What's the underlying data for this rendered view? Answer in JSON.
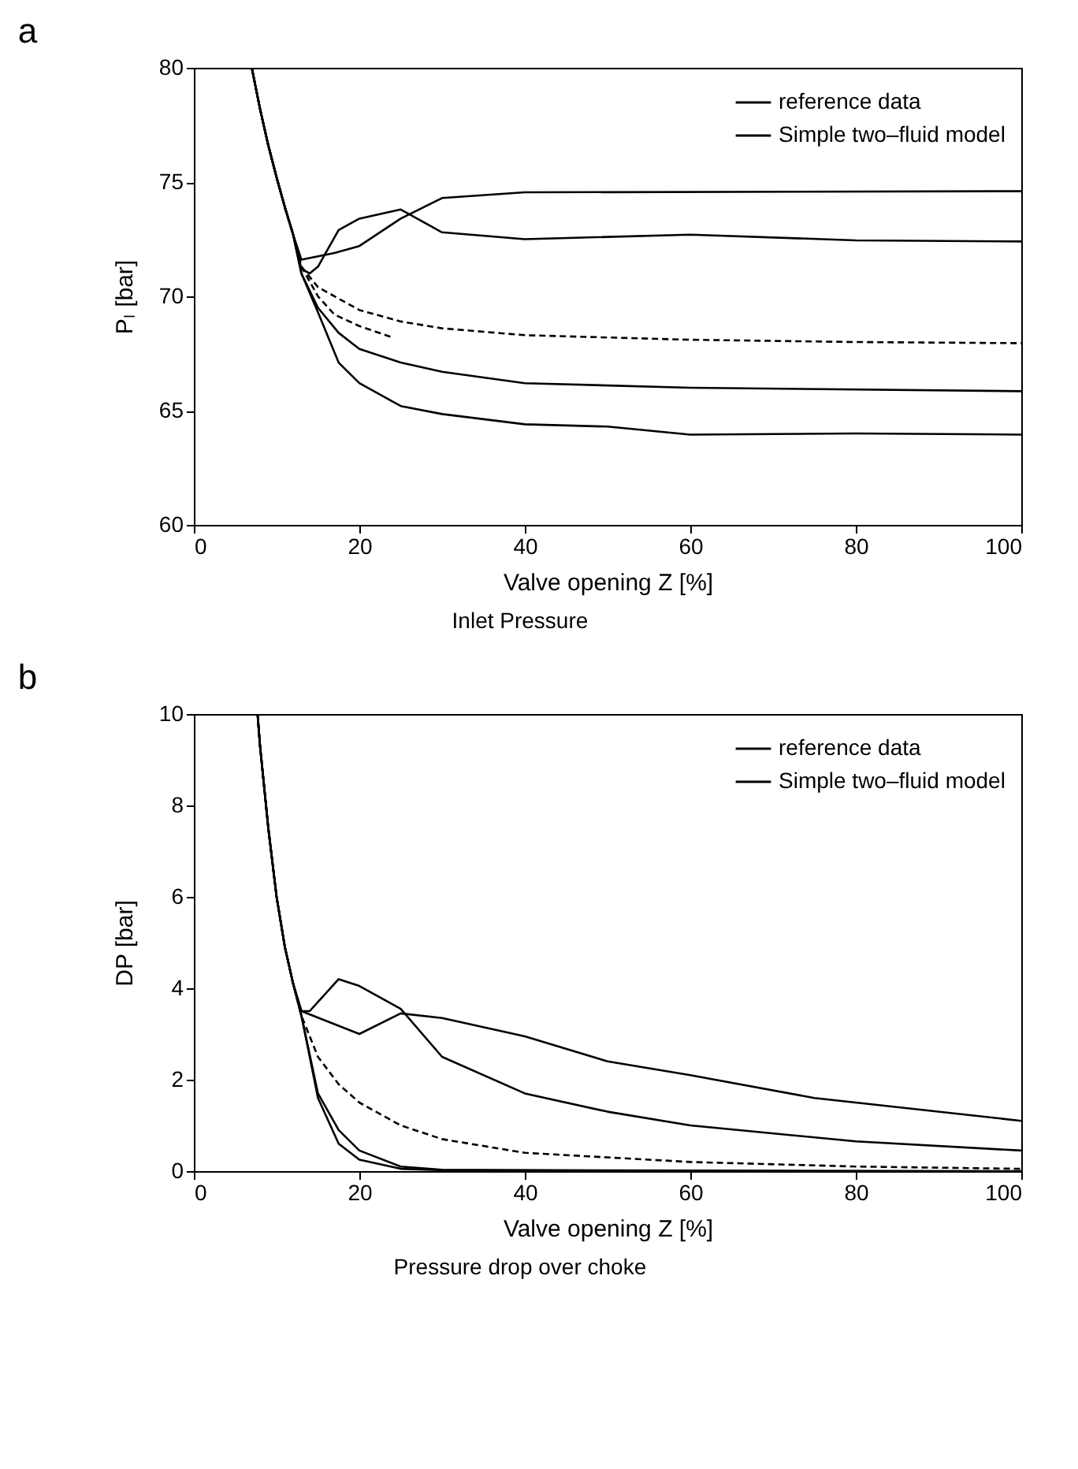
{
  "chart_data": [
    {
      "type": "line",
      "title": "a",
      "xlabel": "Valve opening Z [%]",
      "ylabel": "Pₗ [bar]",
      "annotations": [
        "Inlet Pressure"
      ],
      "xlim": [
        0,
        100
      ],
      "xticks": [
        0,
        20,
        40,
        60,
        80,
        100
      ],
      "ylim": [
        60,
        80
      ],
      "yticks": [
        60,
        65,
        70,
        75,
        80
      ],
      "legend": "top right",
      "series": [
        {
          "name": "reference data",
          "color": "#000000",
          "x": [
            7,
            8,
            9,
            10,
            11,
            12,
            13,
            14,
            15,
            17.5,
            20,
            25,
            30,
            40,
            60,
            80,
            100
          ],
          "values": [
            80,
            78.2,
            76.6,
            75.2,
            73.9,
            72.7,
            71.2,
            71.0,
            71.3,
            72.9,
            73.4,
            73.8,
            72.8,
            72.5,
            72.7,
            72.45,
            72.4
          ]
        },
        {
          "name": "Simple two–fluid model",
          "color": "#000000",
          "x": [
            7,
            8,
            9,
            10,
            11,
            12,
            13,
            17,
            20,
            25,
            30,
            40,
            100
          ],
          "values": [
            80,
            78.2,
            76.6,
            75.2,
            73.9,
            72.7,
            71.6,
            71.9,
            72.2,
            73.4,
            74.3,
            74.55,
            74.6
          ]
        },
        {
          "color": "#000000",
          "line_style": "dashed",
          "x": [
            7,
            8,
            9,
            10,
            11,
            12,
            13,
            15,
            20,
            25,
            30,
            40,
            60,
            80,
            100
          ],
          "values": [
            80,
            78.2,
            76.6,
            75.2,
            73.9,
            72.7,
            71.3,
            70.4,
            69.4,
            68.9,
            68.6,
            68.3,
            68.1,
            68.0,
            67.95
          ]
        },
        {
          "color": "#000000",
          "line_style": "dashed",
          "x": [
            7,
            8,
            9,
            10,
            11,
            12,
            13,
            15,
            17,
            20,
            24
          ],
          "values": [
            80,
            78.2,
            76.6,
            75.2,
            73.9,
            72.7,
            71.3,
            70.0,
            69.2,
            68.7,
            68.2
          ]
        },
        {
          "color": "#000000",
          "x": [
            7,
            8,
            9,
            10,
            11,
            12,
            13,
            15,
            17.5,
            20,
            25,
            30,
            40,
            60,
            100
          ],
          "values": [
            80,
            78.2,
            76.6,
            75.2,
            73.9,
            72.7,
            71.0,
            69.5,
            68.4,
            67.7,
            67.1,
            66.7,
            66.2,
            66.0,
            65.85
          ]
        },
        {
          "color": "#000000",
          "x": [
            7,
            8,
            9,
            10,
            11,
            12,
            13,
            15,
            17.5,
            20,
            25,
            30,
            40,
            50,
            60,
            80,
            100
          ],
          "values": [
            80,
            78.2,
            76.6,
            75.2,
            73.9,
            72.7,
            71.0,
            69.3,
            67.1,
            66.2,
            65.2,
            64.85,
            64.4,
            64.3,
            63.95,
            64.0,
            63.95
          ]
        }
      ]
    },
    {
      "type": "line",
      "title": "b",
      "xlabel": "Valve opening Z [%]",
      "ylabel": "DP [bar]",
      "annotations": [
        "Pressure drop over choke"
      ],
      "xlim": [
        0,
        100
      ],
      "xticks": [
        0,
        20,
        40,
        60,
        80,
        100
      ],
      "ylim": [
        0,
        10
      ],
      "yticks": [
        0,
        2,
        4,
        6,
        8,
        10
      ],
      "legend": "top right",
      "series": [
        {
          "name": "reference data",
          "color": "#000000",
          "x": [
            7.7,
            8,
            9,
            10,
            11,
            12,
            13,
            14,
            15,
            17.5,
            20,
            25,
            30,
            40,
            50,
            60,
            80,
            100
          ],
          "values": [
            10,
            9.3,
            7.5,
            6.0,
            4.9,
            4.1,
            3.5,
            3.5,
            3.7,
            4.2,
            4.05,
            3.55,
            2.5,
            1.7,
            1.3,
            1.0,
            0.65,
            0.45
          ]
        },
        {
          "name": "Simple two–fluid model",
          "color": "#000000",
          "x": [
            7.7,
            8,
            9,
            10,
            11,
            12,
            13,
            20,
            25,
            30,
            40,
            50,
            60,
            75,
            100
          ],
          "values": [
            10,
            9.3,
            7.5,
            6.0,
            4.9,
            4.1,
            3.5,
            3.0,
            3.45,
            3.35,
            2.95,
            2.4,
            2.1,
            1.6,
            1.1
          ]
        },
        {
          "color": "#000000",
          "line_style": "dashed",
          "x": [
            7.7,
            8,
            9,
            10,
            11,
            12,
            13,
            15,
            17.5,
            20,
            25,
            30,
            40,
            60,
            80,
            100
          ],
          "values": [
            10,
            9.3,
            7.5,
            6.0,
            4.9,
            4.1,
            3.4,
            2.5,
            1.9,
            1.5,
            1.0,
            0.7,
            0.4,
            0.2,
            0.1,
            0.05
          ]
        },
        {
          "color": "#000000",
          "x": [
            7.7,
            8,
            9,
            10,
            11,
            12,
            13,
            15,
            17.5,
            20,
            25,
            30,
            50
          ],
          "values": [
            10,
            9.3,
            7.5,
            6.0,
            4.9,
            4.1,
            3.4,
            1.7,
            0.9,
            0.45,
            0.1,
            0.03,
            0.01
          ]
        },
        {
          "color": "#000000",
          "x": [
            7.7,
            8,
            9,
            10,
            11,
            12,
            13,
            15,
            17.5,
            20,
            25,
            30,
            100
          ],
          "values": [
            10,
            9.3,
            7.5,
            6.0,
            4.9,
            4.1,
            3.4,
            1.6,
            0.6,
            0.25,
            0.05,
            0.02,
            0
          ]
        }
      ]
    }
  ]
}
